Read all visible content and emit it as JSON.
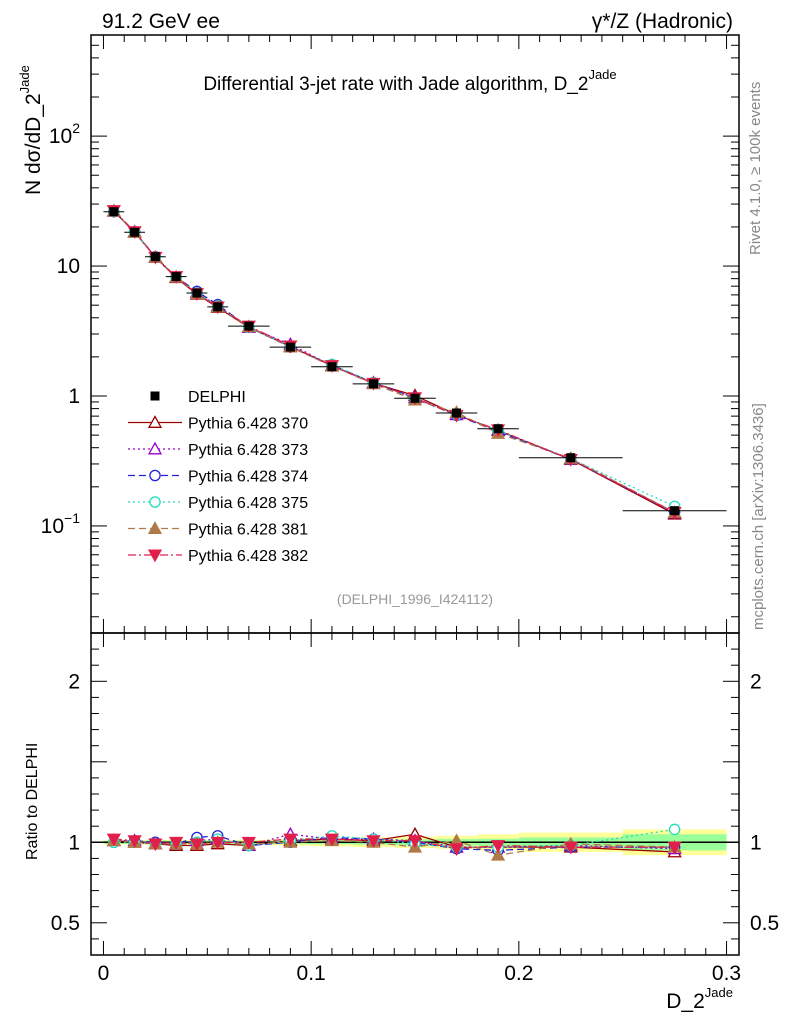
{
  "header": {
    "left": "91.2 GeV ee",
    "right": "γ*/Z (Hadronic)"
  },
  "side_labels": {
    "rivet": "Rivet 4.1.0, ≥ 100k events",
    "mcplots": "mcplots.cern.ch [arXiv:1306.3436]"
  },
  "chart_data": {
    "type": "scatter",
    "title": "Differential 3-jet rate with Jade algorithm, D_2",
    "title_sup": "Jade",
    "xlabel": "D_2",
    "xlabel_sup": "Jade",
    "ylabel": "N  dσ/dD_2",
    "ylabel_sup": "Jade",
    "ratio_ylabel": "Ratio to DELPHI",
    "analysis_label": "(DELPHI_1996_I424112)",
    "yscale": "log",
    "xlim": [
      -0.006,
      0.306
    ],
    "ylim": [
      0.015,
      600
    ],
    "ratio_ylim": [
      0.3,
      2.3
    ],
    "x_ticks": [
      "0",
      "0.1",
      "0.2",
      "0.3"
    ],
    "x_tick_values": [
      0,
      0.1,
      0.2,
      0.3
    ],
    "y_ticks": [
      {
        "value": 0.1,
        "base": "10",
        "exp": "−1"
      },
      {
        "value": 1,
        "base": "1",
        "exp": ""
      },
      {
        "value": 10,
        "base": "10",
        "exp": ""
      },
      {
        "value": 100,
        "base": "10",
        "exp": "2"
      }
    ],
    "ratio_ticks": [
      "0.5",
      "1",
      "2"
    ],
    "ratio_tick_values": [
      0.5,
      1,
      2
    ],
    "x": [
      0.005,
      0.015,
      0.025,
      0.035,
      0.045,
      0.055,
      0.07,
      0.09,
      0.11,
      0.13,
      0.15,
      0.17,
      0.19,
      0.225,
      0.275
    ],
    "bin_edges": [
      0,
      0.01,
      0.02,
      0.03,
      0.04,
      0.05,
      0.06,
      0.08,
      0.1,
      0.12,
      0.14,
      0.16,
      0.18,
      0.2,
      0.25,
      0.3
    ],
    "data": {
      "name": "DELPHI",
      "values": [
        26.2,
        18.2,
        11.8,
        8.3,
        6.2,
        4.85,
        3.45,
        2.38,
        1.68,
        1.24,
        0.96,
        0.74,
        0.56,
        0.335,
        0.131
      ],
      "stat_band": [
        0.01,
        0.01,
        0.01,
        0.01,
        0.01,
        0.01,
        0.01,
        0.012,
        0.012,
        0.015,
        0.018,
        0.02,
        0.022,
        0.03,
        0.05
      ],
      "total_band": [
        0.015,
        0.015,
        0.015,
        0.015,
        0.015,
        0.015,
        0.015,
        0.02,
        0.025,
        0.03,
        0.035,
        0.04,
        0.05,
        0.06,
        0.08
      ]
    },
    "series": [
      {
        "name": "Pythia 6.428 370",
        "color": "#990000",
        "marker": "triangle-up-open",
        "dash": "solid",
        "ratio": [
          1.01,
          1.0,
          0.99,
          0.98,
          0.98,
          0.99,
          0.98,
          1.01,
          1.02,
          1.01,
          1.05,
          0.97,
          0.97,
          0.97,
          0.94
        ]
      },
      {
        "name": "Pythia 6.428 373",
        "color": "#9900cc",
        "marker": "triangle-up-open",
        "dash": "dotted",
        "ratio": [
          1.01,
          1.01,
          0.99,
          0.99,
          1.01,
          1.02,
          0.98,
          1.05,
          1.02,
          1.02,
          1.01,
          0.97,
          0.97,
          0.98,
          0.96
        ]
      },
      {
        "name": "Pythia 6.428 374",
        "color": "#2222dd",
        "marker": "circle-open",
        "dash": "dashed",
        "ratio": [
          1.0,
          1.01,
          1.0,
          0.99,
          1.03,
          1.04,
          0.98,
          1.0,
          1.03,
          1.02,
          1.0,
          0.96,
          0.95,
          0.97,
          0.97
        ]
      },
      {
        "name": "Pythia 6.428 375",
        "color": "#22ddbb",
        "marker": "circle-open",
        "dash": "dotted",
        "ratio": [
          1.0,
          1.0,
          0.99,
          0.99,
          1.0,
          1.02,
          0.98,
          1.01,
          1.04,
          1.02,
          0.99,
          0.97,
          0.97,
          0.98,
          1.08
        ]
      },
      {
        "name": "Pythia 6.428 381",
        "color": "#b07a48",
        "marker": "triangle-up-filled",
        "dash": "dashed",
        "ratio": [
          1.01,
          1.0,
          0.99,
          0.99,
          0.99,
          1.0,
          0.99,
          1.0,
          1.01,
          1.0,
          0.97,
          1.01,
          0.92,
          0.99,
          0.97
        ]
      },
      {
        "name": "Pythia 6.428 382",
        "color": "#e0204a",
        "marker": "triangle-down-filled",
        "dash": "dashdot",
        "ratio": [
          1.02,
          1.01,
          0.99,
          1.0,
          0.99,
          1.0,
          1.0,
          1.02,
          1.02,
          1.01,
          1.01,
          0.96,
          0.98,
          0.97,
          0.97
        ]
      }
    ]
  }
}
